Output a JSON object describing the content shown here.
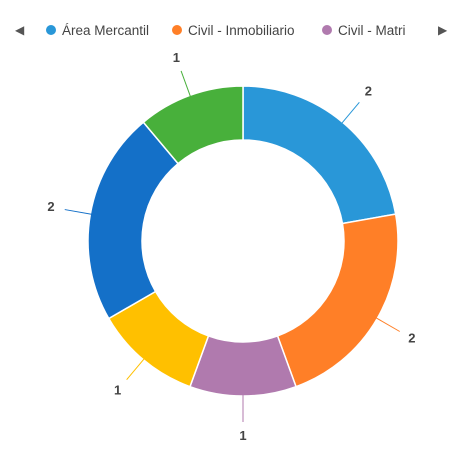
{
  "legend": {
    "prev_icon": "left-triangle-icon",
    "next_icon": "right-triangle-icon",
    "prev_glyph": "◀",
    "next_glyph": "▶",
    "items": [
      {
        "label": "Área Mercantil",
        "color": "#2997d8"
      },
      {
        "label": "Civil - Inmobiliario",
        "color": "#ff7f27"
      },
      {
        "label": "Civil - Matri",
        "color": "#b07aae"
      }
    ]
  },
  "chart_data": {
    "type": "pie",
    "donut": true,
    "start_angle_deg": 0,
    "slices": [
      {
        "value": 2,
        "label": "2",
        "color": "#2997d8"
      },
      {
        "value": 2,
        "label": "2",
        "color": "#ff7f27"
      },
      {
        "value": 1,
        "label": "1",
        "color": "#b07aae"
      },
      {
        "value": 1,
        "label": "1",
        "color": "#ffc000"
      },
      {
        "value": 2,
        "label": "2",
        "color": "#1470c8"
      },
      {
        "value": 1,
        "label": "1",
        "color": "#48b03b"
      }
    ],
    "legend_position": "top"
  }
}
